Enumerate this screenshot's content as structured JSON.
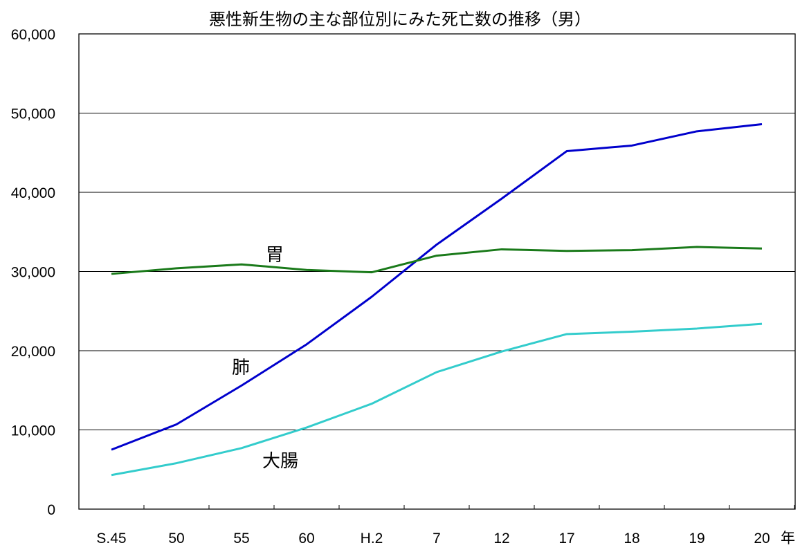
{
  "chart_data": {
    "type": "line",
    "title": "悪性新生物の主な部位別にみた死亡数の推移（男）",
    "xlabel": "年",
    "ylabel": "",
    "categories": [
      "S.45",
      "50",
      "55",
      "60",
      "H.2",
      "7",
      "12",
      "17",
      "18",
      "19",
      "20"
    ],
    "y_tick_labels": [
      "0",
      "10,000",
      "20,000",
      "30,000",
      "40,000",
      "50,000",
      "60,000"
    ],
    "ylim": [
      0,
      60000
    ],
    "grid": "horizontal",
    "series": [
      {
        "name": "肺",
        "color": "#0000cc",
        "values": [
          7500,
          10700,
          15600,
          20800,
          26800,
          33400,
          39200,
          45200,
          45900,
          47700,
          48600
        ]
      },
      {
        "name": "胃",
        "color": "#1a7a1a",
        "values": [
          29700,
          30400,
          30900,
          30200,
          29900,
          32000,
          32800,
          32600,
          32700,
          33100,
          32900
        ]
      },
      {
        "name": "大腸",
        "color": "#33cccc",
        "values": [
          4300,
          5800,
          7700,
          10300,
          13300,
          17300,
          19900,
          22100,
          22400,
          22800,
          23400
        ]
      }
    ]
  }
}
